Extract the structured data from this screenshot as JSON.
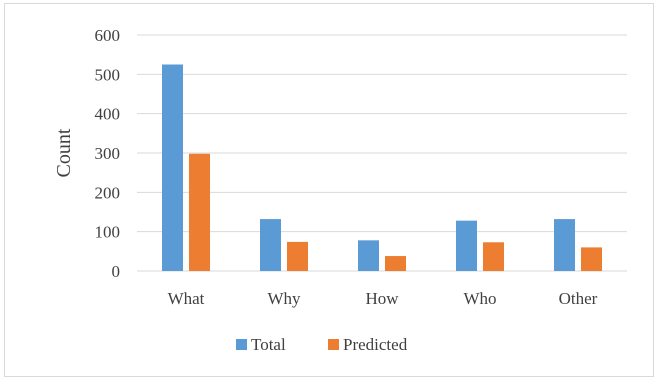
{
  "chart_data": {
    "type": "bar",
    "categories": [
      "What",
      "Why",
      "How",
      "Who",
      "Other"
    ],
    "series": [
      {
        "name": "Total",
        "values": [
          525,
          132,
          78,
          128,
          132
        ],
        "color": "#5b9bd5"
      },
      {
        "name": "Predicted",
        "values": [
          298,
          74,
          38,
          73,
          60
        ],
        "color": "#ed7d31"
      }
    ],
    "xlabel": "",
    "ylabel": "Count",
    "ylim": [
      0,
      600
    ],
    "yticks": [
      0,
      100,
      200,
      300,
      400,
      500,
      600
    ],
    "grid": true,
    "legend": "bottom",
    "gridline_color": "#d9d9d9",
    "text_color": "#404040"
  }
}
